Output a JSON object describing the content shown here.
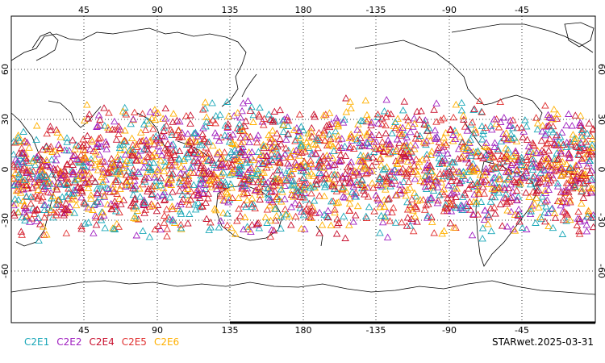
{
  "map": {
    "top_lon_labels": [
      "45",
      "90",
      "135",
      "180",
      "-135",
      "-90",
      "-45"
    ],
    "bottom_lon_labels": [
      "45",
      "90",
      "135",
      "180",
      "-135",
      "-90",
      "-45"
    ],
    "lat_labels": [
      "60",
      "30",
      "0",
      "-30",
      "-60"
    ],
    "grid_lines": "dotted",
    "marker": "open-triangle"
  },
  "legend": {
    "items": [
      {
        "label": "C2E1",
        "color": "#1aa7b8"
      },
      {
        "label": "C2E2",
        "color": "#a020c0"
      },
      {
        "label": "C2E4",
        "color": "#c8102e"
      },
      {
        "label": "C2E5",
        "color": "#e03030"
      },
      {
        "label": "C2E6",
        "color": "#ffb000"
      }
    ]
  },
  "stamp": "STARwet.2025-03-31"
}
